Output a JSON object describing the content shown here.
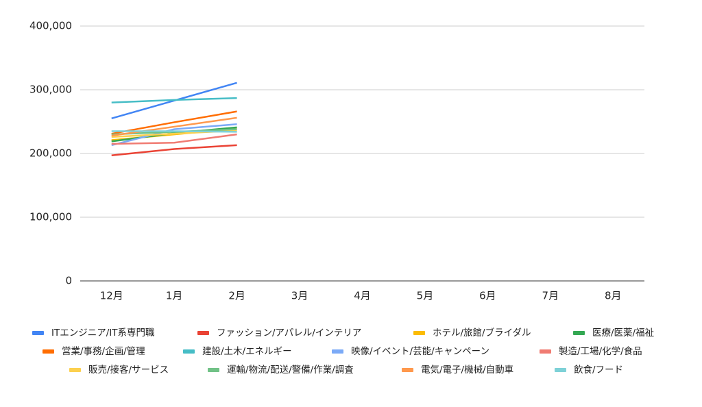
{
  "chart_data": {
    "type": "line",
    "categories": [
      "12月",
      "1月",
      "2月",
      "3月",
      "4月",
      "5月",
      "6月",
      "7月",
      "8月"
    ],
    "series": [
      {
        "name": "ITエンジニア/IT系専門職",
        "color": "#4285f4",
        "values": [
          255000,
          283000,
          311000,
          null,
          null,
          null,
          null,
          null,
          null
        ]
      },
      {
        "name": "ファッション/アパレル/インテリア",
        "color": "#ea4335",
        "values": [
          197000,
          207000,
          213000,
          null,
          null,
          null,
          null,
          null,
          null
        ]
      },
      {
        "name": "ホテル/旅館/ブライダル",
        "color": "#fbbc04",
        "values": [
          221000,
          230000,
          239000,
          null,
          null,
          null,
          null,
          null,
          null
        ]
      },
      {
        "name": "医療/医薬/福祉",
        "color": "#34a853",
        "values": [
          219000,
          232000,
          241000,
          null,
          null,
          null,
          null,
          null,
          null
        ]
      },
      {
        "name": "営業/事務/企画/管理",
        "color": "#ff6d01",
        "values": [
          231000,
          249000,
          266000,
          null,
          null,
          null,
          null,
          null,
          null
        ]
      },
      {
        "name": "建設/土木/エネルギー",
        "color": "#46bdc6",
        "values": [
          280000,
          284000,
          287000,
          null,
          null,
          null,
          null,
          null,
          null
        ]
      },
      {
        "name": "映像/イベント/芸能/キャンペーン",
        "color": "#7baaf7",
        "values": [
          213000,
          238000,
          246000,
          null,
          null,
          null,
          null,
          null,
          null
        ]
      },
      {
        "name": "製造/工場/化学/食品",
        "color": "#f07b72",
        "values": [
          215000,
          217000,
          230000,
          null,
          null,
          null,
          null,
          null,
          null
        ]
      },
      {
        "name": "販売/接客/サービス",
        "color": "#fcd04f",
        "values": [
          226000,
          231000,
          236000,
          null,
          null,
          null,
          null,
          null,
          null
        ]
      },
      {
        "name": "運輸/物流/配送/警備/作業/調査",
        "color": "#71c287",
        "values": [
          230000,
          234000,
          238000,
          null,
          null,
          null,
          null,
          null,
          null
        ]
      },
      {
        "name": "電気/電子/機械/自動車",
        "color": "#ff994d",
        "values": [
          228000,
          242000,
          256000,
          null,
          null,
          null,
          null,
          null,
          null
        ]
      },
      {
        "name": "飲食/フード",
        "color": "#7ed1d7",
        "values": [
          235000,
          235000,
          234000,
          null,
          null,
          null,
          null,
          null,
          null
        ]
      }
    ],
    "ylim": [
      0,
      400000
    ],
    "yticks": [
      0,
      {
        "value": 100000,
        "label": "100,000"
      },
      {
        "value": 200000,
        "label": "200,000"
      },
      {
        "value": 300000,
        "label": "300,000"
      },
      {
        "value": 400000,
        "label": "400,000"
      }
    ],
    "grid": true,
    "legend": "bottom"
  }
}
